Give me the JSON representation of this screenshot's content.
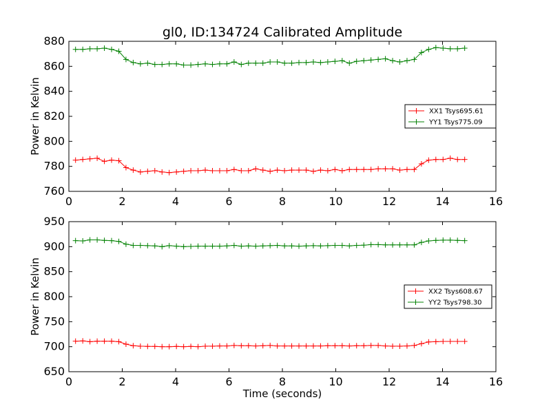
{
  "figure": {
    "title": "gl0, ID:134724 Calibrated Amplitude"
  },
  "chart_data": [
    {
      "type": "line",
      "xlabel": "",
      "ylabel": "Power in Kelvin",
      "xlim": [
        0,
        16
      ],
      "ylim": [
        760,
        880
      ],
      "xticks": [
        "0",
        "2",
        "4",
        "6",
        "8",
        "10",
        "12",
        "14",
        "16"
      ],
      "yticks": [
        "760",
        "780",
        "800",
        "820",
        "840",
        "860",
        "880"
      ],
      "grid": false,
      "legend_position": "center-right",
      "x": [
        0.25,
        0.52,
        0.79,
        1.06,
        1.33,
        1.6,
        1.87,
        2.14,
        2.41,
        2.68,
        2.95,
        3.22,
        3.49,
        3.76,
        4.03,
        4.3,
        4.57,
        4.84,
        5.11,
        5.38,
        5.65,
        5.92,
        6.19,
        6.46,
        6.73,
        7.0,
        7.27,
        7.54,
        7.81,
        8.08,
        8.35,
        8.62,
        8.89,
        9.16,
        9.43,
        9.7,
        9.97,
        10.24,
        10.51,
        10.78,
        11.05,
        11.32,
        11.59,
        11.86,
        12.13,
        12.4,
        12.67,
        12.94,
        13.21,
        13.48,
        13.75,
        14.02,
        14.29,
        14.56,
        14.83
      ],
      "series": [
        {
          "name": "XX1 Tsys695.61",
          "color": "#ff0000",
          "values": [
            785,
            785.5,
            786,
            786.5,
            784,
            785,
            784.5,
            779,
            777,
            775.5,
            776,
            776.5,
            775.5,
            775,
            775.5,
            776,
            776.5,
            776.5,
            777,
            776.5,
            776.5,
            776.5,
            777.5,
            776.5,
            776.5,
            778,
            777,
            776,
            777,
            776.5,
            777,
            777,
            777,
            776,
            777,
            776.5,
            777.5,
            776.5,
            777.5,
            777.5,
            777.5,
            777.5,
            778,
            778,
            778,
            777,
            777.5,
            777.5,
            782,
            785,
            785.5,
            785.5,
            786.5,
            785.5,
            785.5
          ]
        },
        {
          "name": "YY1 Tsys775.09",
          "color": "#008000",
          "values": [
            873.5,
            873.5,
            874,
            874,
            874.5,
            873.5,
            872,
            865.5,
            863,
            862,
            862.5,
            861.5,
            861.5,
            862,
            862,
            861,
            861,
            861.5,
            862,
            861.5,
            862,
            862,
            863.5,
            861.5,
            862.5,
            862.5,
            862.5,
            863.5,
            863.5,
            862.5,
            862.5,
            863,
            863,
            863.5,
            863,
            863.5,
            864,
            864.5,
            862.5,
            864,
            864.5,
            865,
            865.5,
            866,
            864.5,
            863.5,
            864.5,
            865.5,
            871,
            873.5,
            875,
            874.5,
            874,
            874,
            874.5
          ]
        }
      ]
    },
    {
      "type": "line",
      "xlabel": "Time (seconds)",
      "ylabel": "Power in Kelvin",
      "xlim": [
        0,
        16
      ],
      "ylim": [
        650,
        950
      ],
      "xticks": [
        "0",
        "2",
        "4",
        "6",
        "8",
        "10",
        "12",
        "14",
        "16"
      ],
      "yticks": [
        "650",
        "700",
        "750",
        "800",
        "850",
        "900",
        "950"
      ],
      "grid": false,
      "legend_position": "center-right",
      "x": [
        0.25,
        0.52,
        0.79,
        1.06,
        1.33,
        1.6,
        1.87,
        2.14,
        2.41,
        2.68,
        2.95,
        3.22,
        3.49,
        3.76,
        4.03,
        4.3,
        4.57,
        4.84,
        5.11,
        5.38,
        5.65,
        5.92,
        6.19,
        6.46,
        6.73,
        7.0,
        7.27,
        7.54,
        7.81,
        8.08,
        8.35,
        8.62,
        8.89,
        9.16,
        9.43,
        9.7,
        9.97,
        10.24,
        10.51,
        10.78,
        11.05,
        11.32,
        11.59,
        11.86,
        12.13,
        12.4,
        12.67,
        12.94,
        13.21,
        13.48,
        13.75,
        14.02,
        14.29,
        14.56,
        14.83
      ],
      "series": [
        {
          "name": "XX2 Tsys608.67",
          "color": "#ff0000",
          "values": [
            711,
            711.5,
            710,
            711,
            711,
            711,
            710,
            705,
            702,
            701,
            700.5,
            700.5,
            700,
            700,
            700.5,
            700,
            700.5,
            700,
            701,
            701,
            701.5,
            701.5,
            702.5,
            702,
            702,
            701.5,
            702,
            702.5,
            701.5,
            701.5,
            701.5,
            701.5,
            701.5,
            701.5,
            701.5,
            702,
            702,
            702,
            701.5,
            702,
            702,
            702.5,
            702.5,
            701.5,
            701,
            701,
            701.5,
            702.5,
            706,
            709.5,
            710,
            710.5,
            710.5,
            710.5,
            710.5
          ]
        },
        {
          "name": "YY2 Tsys798.30",
          "color": "#008000",
          "values": [
            912,
            911.5,
            913.5,
            913.5,
            912.5,
            912,
            910.5,
            905,
            902.5,
            902.5,
            902,
            901.5,
            900,
            902,
            901,
            900,
            900.5,
            901,
            901,
            901,
            901,
            901.5,
            902.5,
            901,
            901.5,
            901,
            901.5,
            902,
            902.5,
            901.5,
            901.5,
            901,
            901.5,
            902,
            901.5,
            902,
            902.5,
            902.5,
            901.5,
            902.5,
            903,
            904,
            904,
            903.5,
            903.5,
            903.5,
            903.5,
            903.5,
            908.5,
            911.5,
            912.5,
            913,
            913,
            912.5,
            912
          ]
        }
      ]
    }
  ]
}
